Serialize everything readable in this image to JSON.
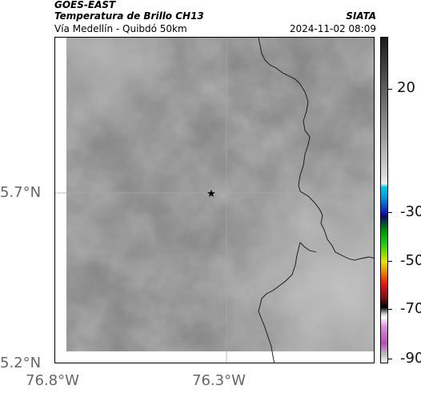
{
  "header": {
    "satellite": "GOES-EAST",
    "product": "Temperatura de Brillo CH13",
    "region": "Vía Medellín - Quibdó 50km",
    "agency": "SIATA",
    "timestamp": "2024-11-02 08:09"
  },
  "map": {
    "lat_labels": [
      "5.7°N",
      "5.2°N"
    ],
    "lon_labels": [
      "76.8°W",
      "76.3°W"
    ],
    "marker": "star-marker"
  },
  "colorbar": {
    "labels": [
      "20",
      "-30",
      "-50",
      "-70",
      "-90"
    ],
    "colors": {
      "warm_gray_top": "#1a1a1a",
      "gray_mid": "#9a9a9a",
      "cyan": "#00c8e6",
      "blue": "#1414b4",
      "green": "#14c814",
      "yellow": "#e6e600",
      "red": "#e61414",
      "black": "#000000",
      "magenta": "#b450b4"
    }
  }
}
